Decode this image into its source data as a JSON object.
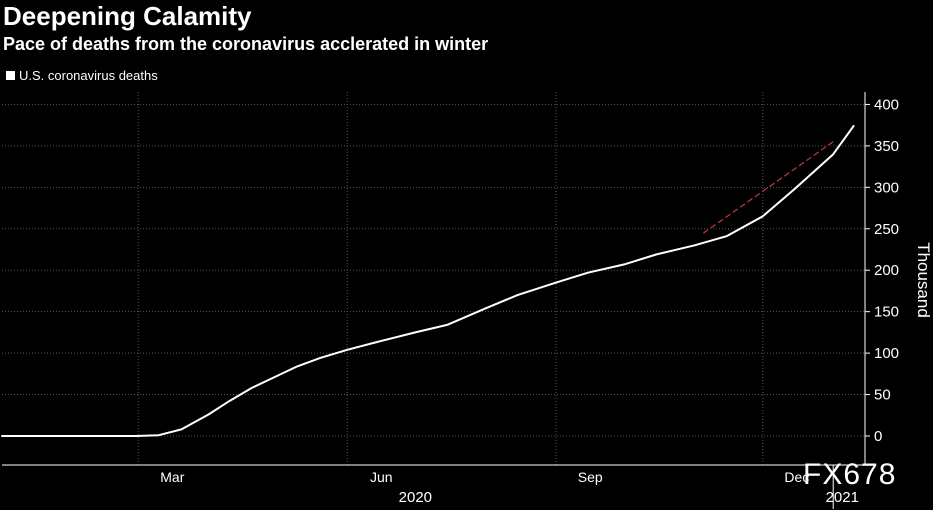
{
  "title": "Deepening Calamity",
  "subtitle": "Pace of deaths from the coronavirus acclerated in winter",
  "watermark": "FX678",
  "colors": {
    "background": "#000000",
    "line": "#ffffff",
    "trend": "#c8383f",
    "grid": "#555555"
  },
  "chart_data": {
    "type": "line",
    "series": [
      {
        "name": "U.S. coronavirus deaths",
        "color": "#ffffff",
        "x": [
          "2020-01-01",
          "2020-02-29",
          "2020-03-10",
          "2020-03-20",
          "2020-04-01",
          "2020-04-10",
          "2020-04-20",
          "2020-04-30",
          "2020-05-10",
          "2020-05-20",
          "2020-06-01",
          "2020-06-15",
          "2020-07-01",
          "2020-07-15",
          "2020-08-01",
          "2020-08-15",
          "2020-09-01",
          "2020-09-15",
          "2020-10-01",
          "2020-10-15",
          "2020-11-01",
          "2020-11-15",
          "2020-12-01",
          "2020-12-15",
          "2021-01-01",
          "2021-01-10"
        ],
        "values": [
          0,
          0,
          1,
          8,
          26,
          42,
          58,
          71,
          84,
          94,
          104,
          114,
          125,
          134,
          154,
          170,
          185,
          197,
          207,
          219,
          230,
          241,
          265,
          298,
          340,
          374
        ]
      },
      {
        "name": "",
        "style": "dashed",
        "color": "#c8383f",
        "x": [
          "2020-11-05",
          "2021-01-01"
        ],
        "values": [
          245,
          355
        ]
      }
    ],
    "x_ticks": [
      "Mar",
      "Jun",
      "Sep",
      "Dec"
    ],
    "x_tick_dates": [
      "2020-03-01",
      "2020-06-01",
      "2020-09-01",
      "2020-12-01"
    ],
    "x_years": [
      {
        "label": "2020",
        "center": "2020-07-01"
      },
      {
        "label": "2021",
        "center": "2021-01-05"
      }
    ],
    "year_boundary": "2021-01-01",
    "xlim": [
      "2020-01-01",
      "2021-01-15"
    ],
    "y_ticks": [
      0,
      50,
      100,
      150,
      200,
      250,
      300,
      350,
      400
    ],
    "ylim": [
      -35,
      415
    ],
    "ylabel": "Thousand",
    "y_axis_side": "right",
    "grid": true,
    "legend_position": "top-left"
  }
}
